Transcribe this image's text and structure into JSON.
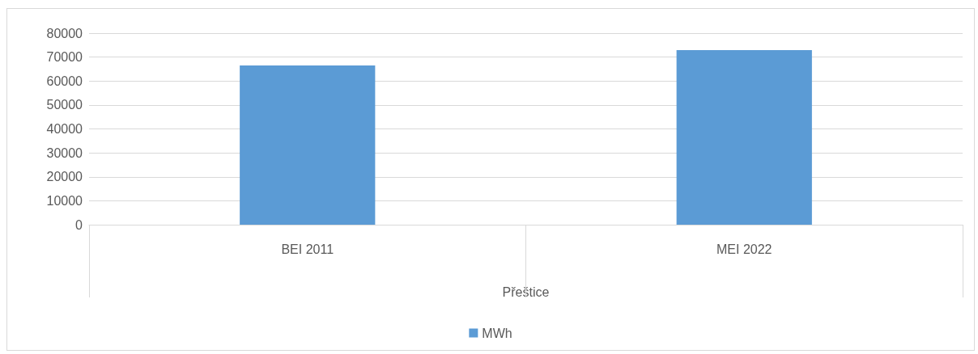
{
  "chart_data": {
    "type": "bar",
    "xlabel": "Přeštice",
    "categories": [
      "BEI 2011",
      "MEI 2022"
    ],
    "series": [
      {
        "name": "MWh",
        "color": "#5b9bd5",
        "values": [
          66500,
          72900
        ]
      }
    ],
    "ylim": [
      0,
      80000
    ],
    "yticks": [
      0,
      10000,
      20000,
      30000,
      40000,
      50000,
      60000,
      70000,
      80000
    ],
    "grid": "y",
    "legend": "bottom"
  }
}
